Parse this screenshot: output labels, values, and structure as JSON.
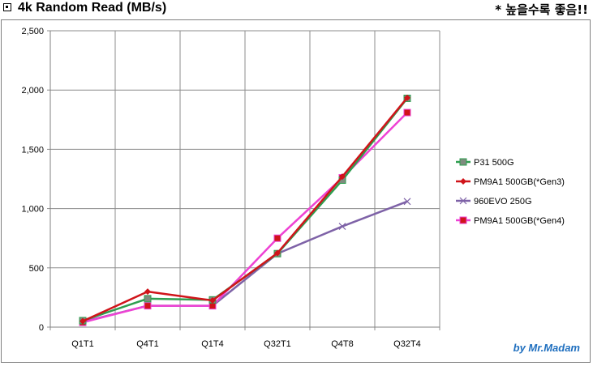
{
  "header": {
    "title": "4k Random Read (MB/s)",
    "note": "* 높을수록 좋음!!"
  },
  "credit": "by Mr.Madam",
  "chart_data": {
    "type": "line",
    "title": "",
    "xlabel": "",
    "ylabel": "",
    "categories": [
      "Q1T1",
      "Q4T1",
      "Q1T4",
      "Q32T1",
      "Q4T8",
      "Q32T4"
    ],
    "ylim": [
      0,
      2500
    ],
    "yticks": [
      0,
      500,
      1000,
      1500,
      2000,
      2500
    ],
    "ytick_labels": [
      "0",
      "500",
      "1,000",
      "1,500",
      "2,000",
      "2,500"
    ],
    "grid": true,
    "legend_position": "right",
    "series": [
      {
        "name": "P31 500G",
        "color": "#2e9e4f",
        "marker": "square",
        "marker_color": "#7f8c7f",
        "values": [
          55,
          240,
          230,
          620,
          1240,
          1930
        ]
      },
      {
        "name": "PM9A1 500GB(*Gen3)",
        "color": "#d0141a",
        "marker": "diamond",
        "marker_color": "#d0141a",
        "values": [
          50,
          300,
          225,
          625,
          1270,
          1935
        ]
      },
      {
        "name": "960EVO 250G",
        "color": "#7e62a7",
        "marker": "x",
        "marker_color": "#7e62a7",
        "values": [
          45,
          180,
          180,
          620,
          850,
          1060
        ]
      },
      {
        "name": "PM9A1 500GB(*Gen4)",
        "color": "#ee42d4",
        "marker": "square",
        "marker_color": "#d0141a",
        "values": [
          40,
          180,
          180,
          750,
          1260,
          1810
        ]
      }
    ]
  }
}
